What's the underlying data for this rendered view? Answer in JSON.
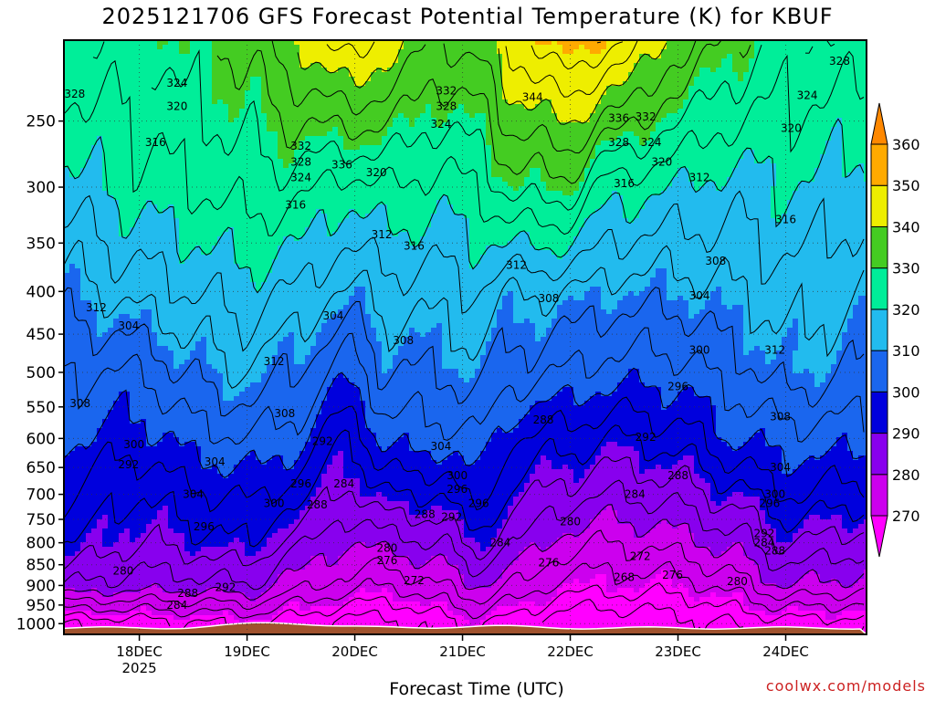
{
  "chart_data": {
    "type": "heatmap",
    "title": "2025121706 GFS Forecast Potential Temperature (K) for KBUF",
    "xlabel": "Forecast Time (UTC)",
    "ylabel": "",
    "y_scale": "log",
    "y_inverted": true,
    "y_ticks": [
      250,
      300,
      350,
      400,
      450,
      500,
      550,
      600,
      650,
      700,
      750,
      800,
      850,
      900,
      950,
      1000
    ],
    "y_range": [
      1030,
      200
    ],
    "x_range": [
      -0.7,
      6.75
    ],
    "x_ticks": [
      {
        "day": 0,
        "label": "18DEC",
        "sublabel": "2025"
      },
      {
        "day": 1,
        "label": "19DEC",
        "sublabel": ""
      },
      {
        "day": 2,
        "label": "20DEC",
        "sublabel": ""
      },
      {
        "day": 3,
        "label": "21DEC",
        "sublabel": ""
      },
      {
        "day": 4,
        "label": "22DEC",
        "sublabel": ""
      },
      {
        "day": 5,
        "label": "23DEC",
        "sublabel": ""
      },
      {
        "day": 6,
        "label": "24DEC",
        "sublabel": ""
      }
    ],
    "colorbar": {
      "labels": [
        270,
        280,
        290,
        300,
        310,
        320,
        330,
        340,
        350,
        360
      ],
      "bands": [
        {
          "lo": 260,
          "hi": 270,
          "color": "#ff00ff"
        },
        {
          "lo": 270,
          "hi": 280,
          "color": "#cc00ee"
        },
        {
          "lo": 280,
          "hi": 290,
          "color": "#8800ee"
        },
        {
          "lo": 290,
          "hi": 300,
          "color": "#0000dd"
        },
        {
          "lo": 300,
          "hi": 310,
          "color": "#1a66ee"
        },
        {
          "lo": 310,
          "hi": 320,
          "color": "#22bbee"
        },
        {
          "lo": 320,
          "hi": 330,
          "color": "#00ee99"
        },
        {
          "lo": 330,
          "hi": 340,
          "color": "#44cc22"
        },
        {
          "lo": 340,
          "hi": 350,
          "color": "#eeee00"
        },
        {
          "lo": 350,
          "hi": 360,
          "color": "#ffaa00"
        },
        {
          "lo": 360,
          "hi": 370,
          "color": "#ff8800"
        }
      ]
    },
    "profile_keys": [
      {
        "x": -0.7,
        "theta": [
          264,
          284,
          292,
          296,
          300,
          304,
          310,
          318,
          326
        ]
      },
      {
        "x": 0.0,
        "theta": [
          266,
          282,
          288,
          292,
          298,
          304,
          314,
          322,
          326
        ]
      },
      {
        "x": 0.5,
        "theta": [
          267,
          282,
          290,
          295,
          302,
          309,
          316,
          324,
          330
        ]
      },
      {
        "x": 1.0,
        "theta": [
          268,
          284,
          292,
          297,
          304,
          312,
          318,
          326,
          332
        ]
      },
      {
        "x": 1.4,
        "theta": [
          266,
          278,
          286,
          294,
          302,
          308,
          316,
          326,
          338
        ]
      },
      {
        "x": 1.95,
        "theta": [
          262,
          274,
          280,
          287,
          292,
          302,
          311,
          322,
          344
        ]
      },
      {
        "x": 2.3,
        "theta": [
          262,
          272,
          282,
          292,
          302,
          308,
          314,
          324,
          340
        ]
      },
      {
        "x": 2.8,
        "theta": [
          266,
          276,
          284,
          292,
          302,
          308,
          314,
          322,
          334
        ]
      },
      {
        "x": 3.1,
        "theta": [
          268,
          280,
          290,
          298,
          304,
          310,
          316,
          324,
          336
        ]
      },
      {
        "x": 3.5,
        "theta": [
          266,
          276,
          284,
          290,
          296,
          306,
          312,
          330,
          344
        ]
      },
      {
        "x": 3.95,
        "theta": [
          260,
          270,
          278,
          286,
          294,
          304,
          312,
          330,
          350
        ]
      },
      {
        "x": 4.4,
        "theta": [
          260,
          270,
          276,
          284,
          292,
          302,
          310,
          322,
          346
        ]
      },
      {
        "x": 5.0,
        "theta": [
          262,
          270,
          278,
          286,
          294,
          302,
          310,
          320,
          336
        ]
      },
      {
        "x": 5.5,
        "theta": [
          264,
          274,
          282,
          290,
          300,
          306,
          312,
          318,
          330
        ]
      },
      {
        "x": 6.0,
        "theta": [
          266,
          280,
          288,
          296,
          302,
          310,
          314,
          320,
          326
        ]
      },
      {
        "x": 6.75,
        "theta": [
          266,
          278,
          286,
          294,
          302,
          308,
          312,
          318,
          326
        ]
      }
    ],
    "profile_levels": [
      1000,
      900,
      800,
      700,
      600,
      500,
      400,
      300,
      210
    ],
    "contour_labels": [
      {
        "x": -0.6,
        "p": 232,
        "v": "328"
      },
      {
        "x": 0.35,
        "p": 225,
        "v": "324"
      },
      {
        "x": 0.35,
        "p": 240,
        "v": "320"
      },
      {
        "x": 0.15,
        "p": 265,
        "v": "316"
      },
      {
        "x": 1.5,
        "p": 268,
        "v": "332"
      },
      {
        "x": 1.5,
        "p": 280,
        "v": "328"
      },
      {
        "x": 1.5,
        "p": 292,
        "v": "324"
      },
      {
        "x": 1.45,
        "p": 315,
        "v": "316"
      },
      {
        "x": 1.88,
        "p": 282,
        "v": "336"
      },
      {
        "x": 2.2,
        "p": 288,
        "v": "320"
      },
      {
        "x": 2.25,
        "p": 342,
        "v": "312"
      },
      {
        "x": 2.55,
        "p": 353,
        "v": "316"
      },
      {
        "x": 2.85,
        "p": 230,
        "v": "332"
      },
      {
        "x": 2.85,
        "p": 240,
        "v": "328"
      },
      {
        "x": 2.8,
        "p": 252,
        "v": "324"
      },
      {
        "x": 3.65,
        "p": 234,
        "v": "344"
      },
      {
        "x": 4.45,
        "p": 248,
        "v": "336"
      },
      {
        "x": 4.7,
        "p": 247,
        "v": "332"
      },
      {
        "x": 4.45,
        "p": 265,
        "v": "328"
      },
      {
        "x": 4.75,
        "p": 265,
        "v": "324"
      },
      {
        "x": 4.85,
        "p": 280,
        "v": "320"
      },
      {
        "x": 4.5,
        "p": 297,
        "v": "316"
      },
      {
        "x": 5.2,
        "p": 292,
        "v": "312"
      },
      {
        "x": 6.0,
        "p": 328,
        "v": "316"
      },
      {
        "x": 6.2,
        "p": 233,
        "v": "324"
      },
      {
        "x": 6.05,
        "p": 255,
        "v": "320"
      },
      {
        "x": 6.5,
        "p": 212,
        "v": "328"
      },
      {
        "x": 3.5,
        "p": 372,
        "v": "312"
      },
      {
        "x": 3.8,
        "p": 408,
        "v": "308"
      },
      {
        "x": 5.35,
        "p": 368,
        "v": "308"
      },
      {
        "x": 5.2,
        "p": 405,
        "v": "304"
      },
      {
        "x": 5.9,
        "p": 470,
        "v": "312"
      },
      {
        "x": -0.4,
        "p": 418,
        "v": "312"
      },
      {
        "x": -0.1,
        "p": 440,
        "v": "304"
      },
      {
        "x": 1.25,
        "p": 485,
        "v": "312"
      },
      {
        "x": 1.8,
        "p": 428,
        "v": "304"
      },
      {
        "x": 2.45,
        "p": 458,
        "v": "308"
      },
      {
        "x": -0.55,
        "p": 545,
        "v": "308"
      },
      {
        "x": 1.35,
        "p": 560,
        "v": "308"
      },
      {
        "x": 5.95,
        "p": 565,
        "v": "308"
      },
      {
        "x": -0.05,
        "p": 610,
        "v": "300"
      },
      {
        "x": -0.1,
        "p": 645,
        "v": "292"
      },
      {
        "x": 0.7,
        "p": 640,
        "v": "304"
      },
      {
        "x": 2.8,
        "p": 613,
        "v": "304"
      },
      {
        "x": 5.2,
        "p": 470,
        "v": "300"
      },
      {
        "x": 5.0,
        "p": 520,
        "v": "296"
      },
      {
        "x": 4.7,
        "p": 598,
        "v": "292"
      },
      {
        "x": 3.75,
        "p": 570,
        "v": "288"
      },
      {
        "x": 1.7,
        "p": 605,
        "v": "292"
      },
      {
        "x": 0.5,
        "p": 700,
        "v": "304"
      },
      {
        "x": 1.5,
        "p": 680,
        "v": "296"
      },
      {
        "x": 1.9,
        "p": 680,
        "v": "284"
      },
      {
        "x": 1.25,
        "p": 718,
        "v": "300"
      },
      {
        "x": 1.65,
        "p": 720,
        "v": "288"
      },
      {
        "x": 2.95,
        "p": 665,
        "v": "300"
      },
      {
        "x": 2.95,
        "p": 690,
        "v": "296"
      },
      {
        "x": 3.15,
        "p": 718,
        "v": "296"
      },
      {
        "x": 2.65,
        "p": 740,
        "v": "288"
      },
      {
        "x": 2.9,
        "p": 745,
        "v": "292"
      },
      {
        "x": 5.0,
        "p": 665,
        "v": "288"
      },
      {
        "x": 4.6,
        "p": 700,
        "v": "284"
      },
      {
        "x": 4.0,
        "p": 755,
        "v": "280"
      },
      {
        "x": 5.95,
        "p": 650,
        "v": "304"
      },
      {
        "x": 5.9,
        "p": 700,
        "v": "300"
      },
      {
        "x": 5.85,
        "p": 718,
        "v": "296"
      },
      {
        "x": 5.8,
        "p": 780,
        "v": "292"
      },
      {
        "x": 5.8,
        "p": 800,
        "v": "284"
      },
      {
        "x": 5.9,
        "p": 818,
        "v": "288"
      },
      {
        "x": 0.6,
        "p": 765,
        "v": "296"
      },
      {
        "x": 3.35,
        "p": 800,
        "v": "284"
      },
      {
        "x": 2.3,
        "p": 812,
        "v": "280"
      },
      {
        "x": 2.3,
        "p": 840,
        "v": "276"
      },
      {
        "x": 2.55,
        "p": 888,
        "v": "272"
      },
      {
        "x": 3.8,
        "p": 845,
        "v": "276"
      },
      {
        "x": 4.65,
        "p": 830,
        "v": "272"
      },
      {
        "x": 4.5,
        "p": 880,
        "v": "268"
      },
      {
        "x": 4.95,
        "p": 875,
        "v": "276"
      },
      {
        "x": 5.55,
        "p": 890,
        "v": "280"
      },
      {
        "x": -0.15,
        "p": 865,
        "v": "280"
      },
      {
        "x": 0.45,
        "p": 920,
        "v": "288"
      },
      {
        "x": 0.35,
        "p": 950,
        "v": "284"
      },
      {
        "x": 0.8,
        "p": 905,
        "v": "292"
      }
    ]
  },
  "credit": "coolwx.com/models"
}
